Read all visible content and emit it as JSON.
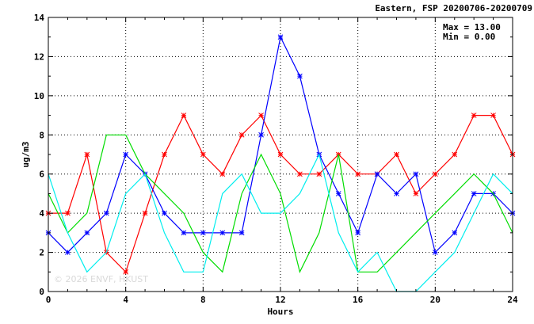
{
  "chart_data": {
    "type": "line",
    "title": "Eastern, FSP 20200706-20200709",
    "xlabel": "Hours",
    "ylabel": "ug/m3",
    "xlim": [
      0,
      24
    ],
    "ylim": [
      0,
      14
    ],
    "x_ticks": [
      0,
      4,
      8,
      12,
      16,
      20,
      24
    ],
    "y_ticks": [
      0,
      2,
      4,
      6,
      8,
      10,
      12,
      14
    ],
    "grid": true,
    "stats": {
      "max_label": "Max = 13.00",
      "min_label": "Min =  0.00"
    },
    "watermark": "© 2026  ENVF, HKUST",
    "series": [
      {
        "color": "#ff0000",
        "marker": "star",
        "x": [
          0,
          1,
          2,
          3,
          4,
          5,
          6,
          7,
          8,
          9,
          10,
          11,
          12,
          13,
          14,
          15,
          16,
          17,
          18,
          19,
          20,
          21,
          22,
          23,
          24
        ],
        "y": [
          4,
          4,
          7,
          2,
          1,
          4,
          7,
          9,
          7,
          6,
          8,
          9,
          7,
          6,
          6,
          7,
          6,
          6,
          7,
          5,
          6,
          7,
          9,
          9,
          7
        ]
      },
      {
        "color": "#0000ff",
        "marker": "star",
        "x": [
          0,
          1,
          2,
          3,
          4,
          5,
          6,
          7,
          8,
          9,
          10,
          11,
          12,
          13,
          14,
          15,
          16,
          17,
          18,
          19,
          20,
          21,
          22,
          23,
          24
        ],
        "y": [
          3,
          2,
          3,
          4,
          7,
          6,
          4,
          3,
          3,
          3,
          3,
          8,
          13,
          11,
          7,
          5,
          3,
          6,
          5,
          6,
          2,
          3,
          5,
          5,
          4
        ]
      },
      {
        "color": "#00dd00",
        "marker": "none",
        "x": [
          0,
          1,
          2,
          3,
          4,
          5,
          6,
          7,
          8,
          9,
          10,
          11,
          12,
          13,
          14,
          15,
          16,
          17,
          18,
          20,
          21,
          22,
          23,
          24
        ],
        "y": [
          5,
          3,
          4,
          8,
          8,
          6,
          5,
          4,
          2,
          1,
          5,
          7,
          5,
          1,
          3,
          7,
          1,
          1,
          2,
          4,
          5,
          6,
          5,
          3
        ]
      },
      {
        "color": "#00eeee",
        "marker": "none",
        "x": [
          0,
          1,
          2,
          3,
          4,
          5,
          6,
          7,
          8,
          9,
          10,
          11,
          12,
          13,
          14,
          15,
          16,
          17,
          18,
          19,
          20,
          21,
          22,
          23,
          24
        ],
        "y": [
          6,
          3,
          1,
          2,
          5,
          6,
          3,
          1,
          1,
          5,
          6,
          4,
          4,
          5,
          7,
          3,
          1,
          2,
          0,
          0,
          1,
          2,
          4,
          6,
          5
        ]
      }
    ]
  }
}
